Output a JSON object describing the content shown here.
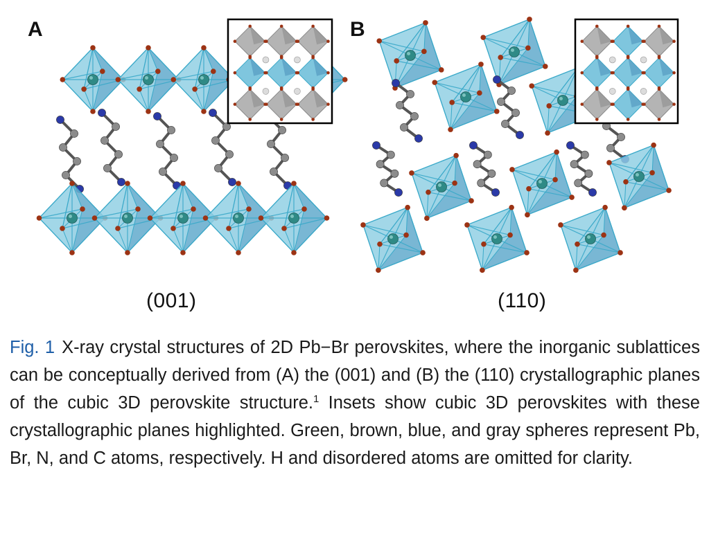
{
  "figure": {
    "panels": [
      {
        "letter": "A",
        "plane_label": "(001)"
      },
      {
        "letter": "B",
        "plane_label": "(110)"
      }
    ],
    "caption": {
      "label": "Fig. 1",
      "text_before_ref": "X-ray crystal structures of 2D Pb−Br perovskites, where the inorganic sublattices can be conceptually derived from (A) the (001) and (B) the (110) crystallographic planes of the cubic 3D perovskite structure.",
      "reference": "1",
      "text_after_ref": " Insets show cubic 3D perovskites with these crystallographic planes highlighted. Green, brown, blue, and gray spheres represent Pb, Br, N, and C atoms, respectively. H and disordered atoms are omitted for clarity."
    },
    "colors": {
      "octahedron_face": "#7fc6de",
      "octahedron_edge": "#3aa9c9",
      "pb_atom": "#2f8a86",
      "br_atom": "#9c3314",
      "n_atom": "#2b3aa8",
      "c_atom": "#8c8c8c",
      "inset_gray": "#b4b4b4"
    }
  }
}
